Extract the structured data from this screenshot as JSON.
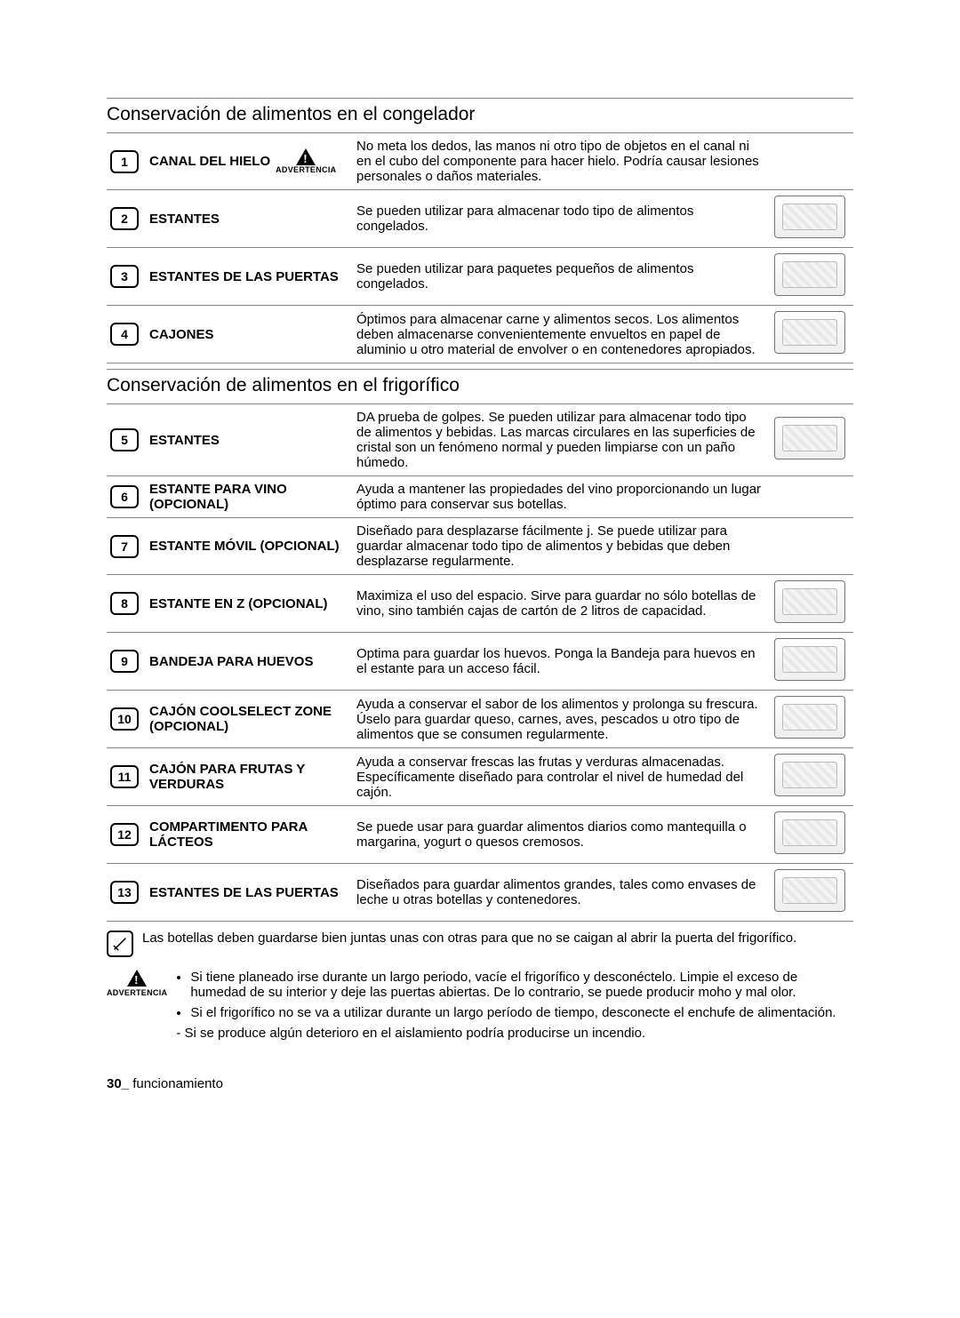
{
  "sections": {
    "freezer_title": "Conservación de alimentos en el congelador",
    "fridge_title": "Conservación de alimentos en el frigorífico"
  },
  "advertencia_label": "ADVERTENCIA",
  "freezer": [
    {
      "num": "1",
      "label": "CANAL DEL HIELO",
      "warn": true,
      "desc": "No meta los dedos, las manos ni otro tipo de objetos en el canal ni en el cubo del componente para hacer hielo. Podría causar lesiones personales o daños materiales.",
      "img": false
    },
    {
      "num": "2",
      "label": "ESTANTES",
      "desc": "Se pueden utilizar para almacenar todo tipo de alimentos congelados.",
      "img": true
    },
    {
      "num": "3",
      "label": "ESTANTES DE LAS PUERTAS",
      "desc": "Se pueden utilizar para paquetes pequeños de alimentos congelados.",
      "img": true
    },
    {
      "num": "4",
      "label": "CAJONES",
      "desc": "Óptimos para almacenar carne y alimentos secos. Los alimentos deben almacenarse convenientemente envueltos en papel de aluminio u otro material de envolver o en contenedores apropiados.",
      "img": true
    }
  ],
  "fridge": [
    {
      "num": "5",
      "label": "ESTANTES",
      "desc": "DA prueba de golpes. Se pueden utilizar para almacenar todo tipo de alimentos y bebidas. Las marcas circulares en las superficies de cristal son un fenómeno normal y pueden limpiarse con un paño húmedo.",
      "img": true
    },
    {
      "num": "6",
      "label": "ESTANTE PARA VINO (OPCIONAL)",
      "desc": "Ayuda a mantener las propiedades del vino proporcionando un lugar óptimo para conservar sus botellas.",
      "img": false
    },
    {
      "num": "7",
      "label": "ESTANTE MÓVIL (OPCIONAL)",
      "desc": "Diseñado para desplazarse fácilmente j. Se puede utilizar para guardar almacenar todo tipo de alimentos y bebidas que deben desplazarse regularmente.",
      "img": false
    },
    {
      "num": "8",
      "label": "ESTANTE EN Z (OPCIONAL)",
      "desc": "Maximiza el uso del espacio. Sirve para guardar no sólo botellas de vino, sino también cajas de cartón de 2 litros de capacidad.",
      "img": true
    },
    {
      "num": "9",
      "label": "BANDEJA PARA HUEVOS",
      "desc": "Optima para guardar los huevos.\nPonga la Bandeja para huevos en el estante para un acceso fácil.",
      "img": true
    },
    {
      "num": "10",
      "label": "CAJÓN COOLSELECT ZONE (OPCIONAL)",
      "desc": "Ayuda a conservar el sabor de los alimentos y prolonga su frescura. Úselo para guardar queso, carnes, aves, pescados u otro tipo de alimentos que se consumen regularmente.",
      "img": true
    },
    {
      "num": "11",
      "label": "CAJÓN PARA FRUTAS Y VERDURAS",
      "desc": "Ayuda a conservar frescas las frutas y verduras almacenadas. Específicamente diseñado para controlar el nivel de humedad del cajón.",
      "img": true
    },
    {
      "num": "12",
      "label": "COMPARTIMENTO PARA LÁCTEOS",
      "desc": "Se puede usar para guardar alimentos diarios como mantequilla o margarina, yogurt o quesos cremosos.",
      "img": true
    },
    {
      "num": "13",
      "label": "ESTANTES DE LAS PUERTAS",
      "desc": "Diseñados para guardar alimentos grandes, tales como envases de leche u otras botellas y contenedores.",
      "img": true
    }
  ],
  "note": "Las botellas deben guardarse bien juntas unas con otras para que no se caigan al abrir la puerta del frigorífico.",
  "warnings": {
    "b1": "Si tiene planeado irse durante un largo periodo, vacíe el frigorífico y desconéctelo. Limpie el exceso de humedad de su interior y deje las puertas abiertas. De lo contrario, se puede producir moho y mal olor.",
    "b2": "Si el frigorífico no se va a utilizar durante un largo período de tiempo, desconecte el enchufe de alimentación.",
    "dash": "- Si se produce algún deterioro en el aislamiento podría producirse un incendio."
  },
  "footer": {
    "page": "30_",
    "label": "funcionamiento"
  }
}
